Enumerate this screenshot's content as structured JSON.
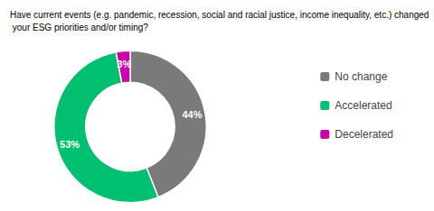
{
  "chart_data": {
    "type": "pie",
    "title": "Have current events (e.g. pandemic, recession, social and racial justice, income inequality, etc.) changed your ESG priorities and/or timing?",
    "categories": [
      "No change",
      "Accelerated",
      "Decelerated"
    ],
    "values": [
      44,
      53,
      3
    ],
    "value_labels": [
      "44%",
      "53%",
      "3%"
    ],
    "colors": [
      "#7a7a7a",
      "#00bf6f",
      "#cc00aa"
    ],
    "data_labels": true,
    "legend": "right"
  }
}
